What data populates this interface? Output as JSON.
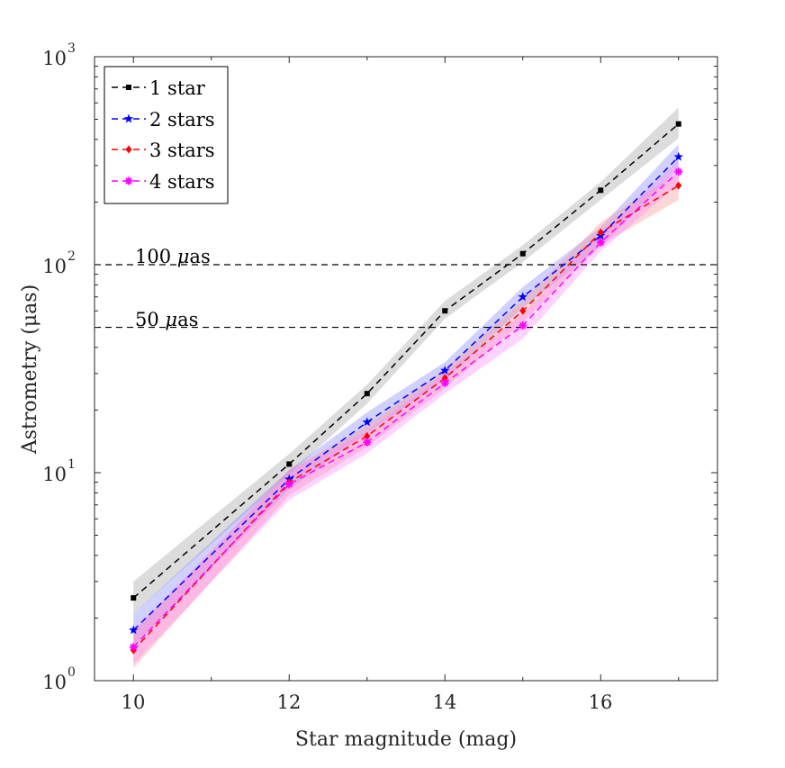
{
  "chart_data": {
    "type": "line",
    "title": "",
    "xlabel": "Star magnitude (mag)",
    "ylabel": "Astrometry (μas)",
    "xlim": [
      9.5,
      17.5
    ],
    "ylim": [
      1,
      1000
    ],
    "yscale": "log",
    "xticks": [
      10,
      12,
      14,
      16
    ],
    "yticks": [
      {
        "value": 1,
        "base": "10",
        "exp": "0"
      },
      {
        "value": 10,
        "base": "10",
        "exp": "1"
      },
      {
        "value": 100,
        "base": "10",
        "exp": "2"
      },
      {
        "value": 1000,
        "base": "10",
        "exp": "3"
      }
    ],
    "grid": false,
    "legend_position": "top-left",
    "x": [
      10,
      12,
      13,
      14,
      15,
      16,
      17
    ],
    "series": [
      {
        "name": "1 star",
        "color": "#000000",
        "band_color": "#9a9a9a",
        "marker": "square",
        "values": [
          2.5,
          11,
          24,
          60,
          113,
          228,
          475
        ],
        "lower": [
          2.1,
          9.8,
          21.5,
          55,
          103,
          205,
          405
        ],
        "upper": [
          3.0,
          12.3,
          26.5,
          67,
          124,
          250,
          570
        ]
      },
      {
        "name": "2 stars",
        "color": "#0000ff",
        "band_color": "#7a7aff",
        "marker": "star",
        "values": [
          1.75,
          9.3,
          17.5,
          31,
          70,
          138,
          330
        ],
        "lower": [
          1.45,
          8.3,
          15.5,
          28,
          62,
          122,
          290
        ],
        "upper": [
          2.1,
          10.3,
          19.5,
          34,
          78,
          152,
          380
        ]
      },
      {
        "name": "3 stars",
        "color": "#ff0000",
        "band_color": "#ff8a8a",
        "marker": "diamond",
        "values": [
          1.4,
          9.0,
          15,
          28.5,
          60,
          143,
          240
        ],
        "lower": [
          1.15,
          7.8,
          13.3,
          25.5,
          53,
          124,
          205
        ],
        "upper": [
          1.7,
          10.3,
          16.8,
          31.5,
          67,
          160,
          278
        ]
      },
      {
        "name": "4 stars",
        "color": "#ff00ff",
        "band_color": "#ff80ff",
        "marker": "asterisk",
        "values": [
          1.45,
          8.8,
          14,
          27,
          51,
          128,
          280
        ],
        "lower": [
          1.2,
          7.4,
          12.4,
          24,
          44,
          116,
          245
        ],
        "upper": [
          1.75,
          10.2,
          15.8,
          30,
          58,
          142,
          318
        ]
      }
    ],
    "reference_lines": [
      {
        "value": 100,
        "label": "100 μas",
        "label_num": "100 ",
        "label_greek": "μ",
        "label_unit": "as"
      },
      {
        "value": 50,
        "label": "50 μas",
        "label_num": "50 ",
        "label_greek": "μ",
        "label_unit": "as"
      }
    ]
  }
}
